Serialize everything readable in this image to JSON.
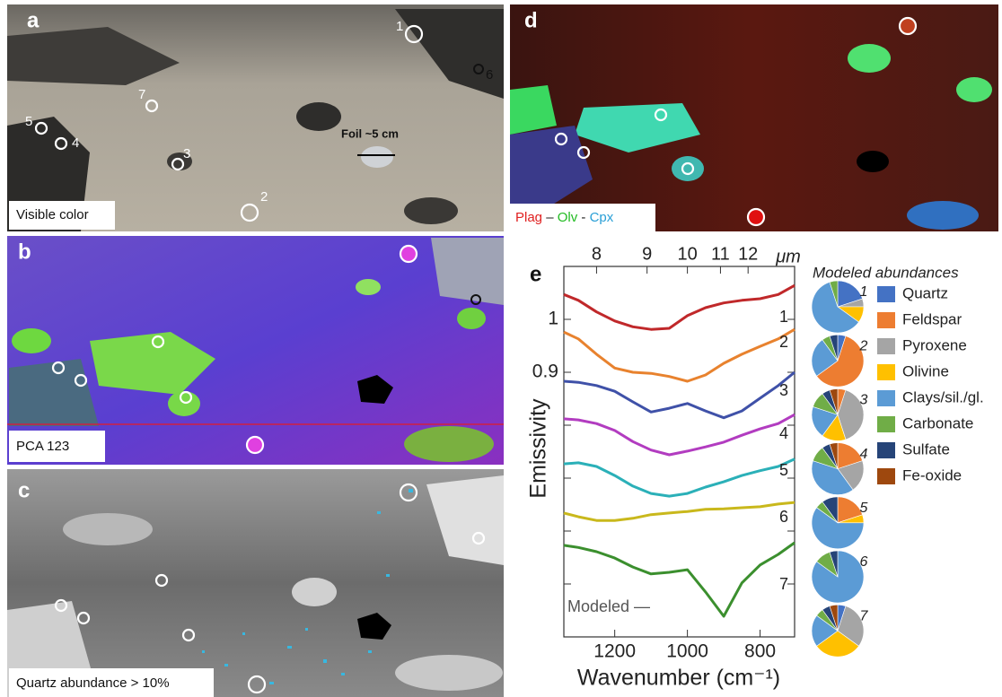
{
  "panels": [
    {
      "letter": "a",
      "caption": "Visible color",
      "point_labels": [
        "1",
        "2",
        "3",
        "4",
        "5",
        "6",
        "7"
      ],
      "annotation": "Foil ~5 cm"
    },
    {
      "letter": "b",
      "caption": "PCA 123"
    },
    {
      "letter": "c",
      "caption": "Quartz abundance > 10%"
    },
    {
      "letter": "d",
      "caption_parts": [
        {
          "text": "Plag",
          "color": "#e02020"
        },
        {
          "text": " – ",
          "color": "#222222"
        },
        {
          "text": "Olv",
          "color": "#22bb22"
        },
        {
          "text": " - ",
          "color": "#222222"
        },
        {
          "text": "Cpx",
          "color": "#2a9fd6"
        }
      ]
    }
  ],
  "chart_data": [
    {
      "type": "line",
      "letter": "e",
      "x_label": "Wavenumber (cm⁻¹)",
      "y_label": "Emissivity",
      "x2_unit": "μm",
      "annotation": "Modeled —",
      "x": [
        1340,
        1300,
        1250,
        1200,
        1150,
        1100,
        1050,
        1000,
        950,
        900,
        850,
        800,
        750,
        705
      ],
      "xlim": [
        1340,
        705
      ],
      "xticks": [
        1200,
        1000,
        800
      ],
      "x2ticks": [
        {
          "value": 1250,
          "label": "8"
        },
        {
          "value": 1111,
          "label": "9"
        },
        {
          "value": 1000,
          "label": "10"
        },
        {
          "value": 909,
          "label": "11"
        },
        {
          "value": 833,
          "label": "12"
        }
      ],
      "ylim": [
        0.4,
        1.1
      ],
      "yticks": [
        1,
        0.9
      ],
      "yticks_minor": [
        0.8,
        0.7,
        0.6,
        0.5
      ],
      "series": [
        {
          "name": "1",
          "color": "#c0282a",
          "values": [
            1.047,
            1.036,
            1.014,
            0.997,
            0.986,
            0.981,
            0.983,
            1.007,
            1.022,
            1.031,
            1.036,
            1.039,
            1.047,
            1.064
          ]
        },
        {
          "name": "2",
          "color": "#e8822e",
          "values": [
            0.976,
            0.963,
            0.934,
            0.908,
            0.9,
            0.898,
            0.892,
            0.883,
            0.895,
            0.917,
            0.934,
            0.949,
            0.963,
            0.981
          ]
        },
        {
          "name": "3",
          "color": "#3f51a8",
          "values": [
            0.883,
            0.881,
            0.875,
            0.864,
            0.844,
            0.825,
            0.832,
            0.841,
            0.827,
            0.814,
            0.827,
            0.851,
            0.875,
            0.9
          ]
        },
        {
          "name": "4",
          "color": "#b23cc0",
          "values": [
            0.812,
            0.81,
            0.803,
            0.79,
            0.769,
            0.753,
            0.744,
            0.751,
            0.759,
            0.768,
            0.781,
            0.793,
            0.803,
            0.82
          ]
        },
        {
          "name": "5",
          "color": "#2bb0b8",
          "values": [
            0.727,
            0.729,
            0.722,
            0.705,
            0.685,
            0.671,
            0.666,
            0.671,
            0.683,
            0.693,
            0.705,
            0.714,
            0.722,
            0.736
          ]
        },
        {
          "name": "6",
          "color": "#c9b81c",
          "values": [
            0.634,
            0.627,
            0.62,
            0.62,
            0.624,
            0.631,
            0.634,
            0.637,
            0.641,
            0.642,
            0.644,
            0.646,
            0.651,
            0.654
          ]
        },
        {
          "name": "7",
          "color": "#3b8f2e",
          "values": [
            0.573,
            0.569,
            0.561,
            0.549,
            0.532,
            0.519,
            0.522,
            0.527,
            0.485,
            0.439,
            0.502,
            0.536,
            0.556,
            0.578
          ]
        }
      ]
    },
    {
      "type": "pie",
      "title": "Modeled abundances",
      "categories": [
        "Quartz",
        "Feldspar",
        "Pyroxene",
        "Olivine",
        "Clays/sil./gl.",
        "Carbonate",
        "Sulfate",
        "Fe-oxide"
      ],
      "colors": [
        "#4472c4",
        "#ed7d31",
        "#a5a5a5",
        "#ffc000",
        "#5b9bd5",
        "#70ad47",
        "#264478",
        "#9e480e"
      ],
      "pies": [
        {
          "label": "1",
          "values": [
            20,
            0,
            5,
            10,
            60,
            5,
            0,
            0
          ]
        },
        {
          "label": "2",
          "values": [
            5,
            60,
            0,
            0,
            25,
            5,
            5,
            0
          ]
        },
        {
          "label": "3",
          "values": [
            0,
            5,
            40,
            15,
            20,
            10,
            5,
            5
          ]
        },
        {
          "label": "4",
          "values": [
            0,
            20,
            20,
            0,
            40,
            10,
            5,
            5
          ]
        },
        {
          "label": "5",
          "values": [
            0,
            20,
            0,
            5,
            60,
            5,
            10,
            0
          ]
        },
        {
          "label": "6",
          "values": [
            0,
            0,
            0,
            0,
            85,
            10,
            5,
            0
          ]
        },
        {
          "label": "7",
          "values": [
            5,
            0,
            30,
            30,
            20,
            5,
            5,
            5
          ]
        }
      ]
    }
  ]
}
